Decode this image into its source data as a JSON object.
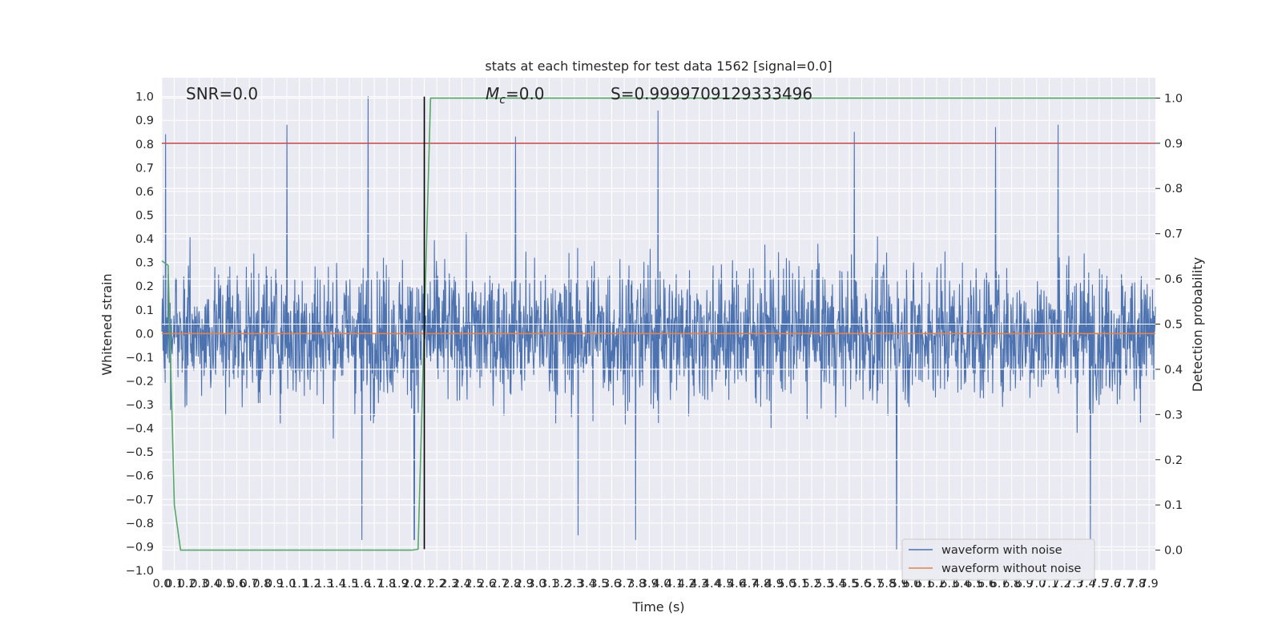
{
  "chart_data": {
    "type": "line",
    "title": "stats at each timestep for test data 1562 [signal=0.0]",
    "xlabel": "Time (s)",
    "ylabel": "Whitened strain",
    "y2label": "Detection probability",
    "xlim": [
      0.0,
      7.95
    ],
    "ylim": [
      -1.0,
      1.08
    ],
    "y2lim": [
      -0.045,
      1.045
    ],
    "grid": true,
    "legend_position": "lower-right",
    "annotations": {
      "snr": "SNR=0.0",
      "mc_symbol": "M",
      "mc_sub": "c",
      "mc_value": "=0.0",
      "s": "S=0.9999709129333496"
    },
    "x_ticks": [
      "0.0",
      "0.1",
      "0.2",
      "0.3",
      "0.4",
      "0.5",
      "0.6",
      "0.7",
      "0.8",
      "0.9",
      "1.0",
      "1.1",
      "1.2",
      "1.3",
      "1.4",
      "1.5",
      "1.6",
      "1.7",
      "1.8",
      "1.9",
      "2.0",
      "2.1",
      "2.2",
      "2.3",
      "2.4",
      "2.5",
      "2.6",
      "2.7",
      "2.8",
      "2.9",
      "3.0",
      "3.1",
      "3.2",
      "3.3",
      "3.4",
      "3.5",
      "3.6",
      "3.7",
      "3.8",
      "3.9",
      "4.0",
      "4.1",
      "4.2",
      "4.3",
      "4.4",
      "4.5",
      "4.6",
      "4.7",
      "4.8",
      "4.9",
      "5.0",
      "5.1",
      "5.2",
      "5.3",
      "5.4",
      "5.5",
      "5.6",
      "5.7",
      "5.8",
      "5.9",
      "6.0",
      "6.1",
      "6.2",
      "6.3",
      "6.4",
      "6.5",
      "6.6",
      "6.7",
      "6.8",
      "6.9",
      "7.0",
      "7.1",
      "7.2",
      "7.3",
      "7.4",
      "7.5",
      "7.6",
      "7.7",
      "7.8",
      "7.9"
    ],
    "y_ticks": [
      "1.0",
      "0.9",
      "0.8",
      "0.7",
      "0.6",
      "0.5",
      "0.4",
      "0.3",
      "0.2",
      "0.1",
      "0.0",
      "−0.1",
      "−0.2",
      "−0.3",
      "−0.4",
      "−0.5",
      "−0.6",
      "−0.7",
      "−0.8",
      "−0.9",
      "−1.0"
    ],
    "y2_ticks": [
      "1.0",
      "0.9",
      "0.8",
      "0.7",
      "0.6",
      "0.5",
      "0.4",
      "0.3",
      "0.2",
      "0.1",
      "0.0"
    ],
    "series": [
      {
        "name": "waveform with noise",
        "color": "#4c72b0",
        "approx_amplitude_range": [
          -0.91,
          1.0
        ],
        "notable_peaks": [
          {
            "x": 0.03,
            "y": 0.84
          },
          {
            "x": 1.0,
            "y": 0.88
          },
          {
            "x": 1.65,
            "y": 1.0
          },
          {
            "x": 2.83,
            "y": 0.83
          },
          {
            "x": 3.97,
            "y": 0.94
          },
          {
            "x": 5.54,
            "y": 0.85
          },
          {
            "x": 6.67,
            "y": 0.87
          },
          {
            "x": 7.17,
            "y": 0.88
          }
        ],
        "notable_troughs": [
          {
            "x": 1.6,
            "y": -0.87
          },
          {
            "x": 2.02,
            "y": -0.87
          },
          {
            "x": 3.33,
            "y": -0.85
          },
          {
            "x": 3.79,
            "y": -0.87
          },
          {
            "x": 5.88,
            "y": -0.91
          },
          {
            "x": 7.43,
            "y": -0.87
          }
        ]
      },
      {
        "name": "waveform without noise",
        "color": "#dd8452",
        "x": [
          0.0,
          7.95
        ],
        "y": [
          0.0,
          0.0
        ]
      },
      {
        "name": "",
        "axis": "right",
        "color": "#55a868",
        "x": [
          0.0,
          0.05,
          0.1,
          0.15,
          0.2,
          2.0,
          2.05,
          2.1,
          2.15,
          7.95
        ],
        "y": [
          0.64,
          0.63,
          0.1,
          0.0,
          0.0,
          0.0,
          0.002,
          0.5,
          1.0,
          1.0
        ]
      }
    ],
    "threshold_line": {
      "axis": "right",
      "y": 0.9,
      "color": "#c44e52"
    },
    "marker_line": {
      "x": 2.1,
      "y_range": [
        -0.91,
        1.0
      ],
      "color": "#000000"
    }
  }
}
